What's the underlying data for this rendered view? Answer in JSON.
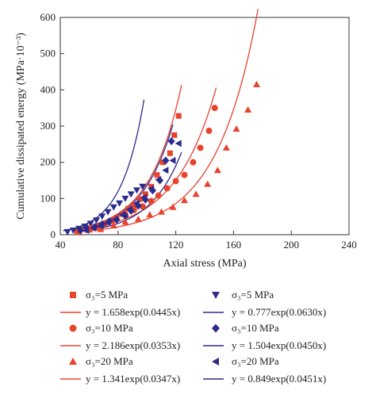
{
  "colors": {
    "red": "#e8432e",
    "blue": "#2c2c8c",
    "axis": "#333333"
  },
  "chart_data": {
    "type": "scatter",
    "xlabel": "Axial stress (MPa)",
    "ylabel": "Cumulative dissipated energy (MPa·10⁻³)",
    "xlim": [
      40,
      240
    ],
    "ylim": [
      0,
      600
    ],
    "xticks": [
      "40",
      "80",
      "120",
      "160",
      "200",
      "240"
    ],
    "yticks": [
      "0",
      "100",
      "200",
      "300",
      "400",
      "500",
      "600"
    ],
    "grid": false,
    "legend_position": "below plot",
    "series": [
      {
        "name": "σ₃=5 MPa",
        "color": "#e8432e",
        "marker": "square",
        "x": [
          53,
          59,
          63,
          67,
          71,
          75,
          79,
          83,
          87,
          91,
          95,
          99,
          103,
          107,
          111,
          116,
          119,
          122
        ],
        "y": [
          8,
          13,
          18,
          22,
          31,
          37,
          47,
          57,
          72,
          82,
          98,
          112,
          133,
          165,
          200,
          225,
          275,
          328
        ]
      },
      {
        "name": "σ₃=5 MPa",
        "color": "#2c2c8c",
        "marker": "triangle-down",
        "x": [
          45,
          49,
          53,
          57,
          61,
          65,
          69,
          73,
          77,
          81,
          85,
          89,
          93,
          97
        ],
        "y": [
          8,
          12,
          17,
          23,
          31,
          40,
          51,
          63,
          76,
          87,
          100,
          112,
          123,
          133
        ]
      },
      {
        "name": "σ₃=10 MPa",
        "color": "#e8432e",
        "marker": "circle",
        "x": [
          52,
          61,
          70,
          78,
          85,
          91,
          97,
          103,
          108,
          114,
          120,
          126,
          132,
          137,
          143,
          147
        ],
        "y": [
          7,
          18,
          30,
          43,
          56,
          68,
          78,
          93,
          108,
          128,
          148,
          165,
          200,
          240,
          287,
          350
        ]
      },
      {
        "name": "σ₃=10 MPa",
        "color": "#2c2c8c",
        "marker": "diamond",
        "x": [
          54,
          59,
          64,
          69,
          74,
          79,
          85,
          89,
          94,
          99,
          104,
          109,
          113,
          117
        ],
        "y": [
          12,
          16,
          22,
          29,
          37,
          42,
          52,
          66,
          80,
          97,
          122,
          150,
          205,
          258
        ]
      },
      {
        "name": "σ₃=20 MPa",
        "color": "#e8432e",
        "marker": "triangle-up",
        "x": [
          60,
          68,
          77,
          85,
          94,
          102,
          110,
          118,
          126,
          134,
          142,
          149,
          155,
          162,
          170,
          176
        ],
        "y": [
          14,
          15,
          25,
          35,
          43,
          55,
          63,
          76,
          95,
          112,
          140,
          178,
          240,
          292,
          345,
          415
        ]
      },
      {
        "name": "σ₃=20 MPa",
        "color": "#2c2c8c",
        "marker": "triangle-left",
        "x": [
          58,
          63,
          68,
          73,
          78,
          83,
          88,
          93,
          98,
          103,
          108,
          113,
          118,
          122
        ],
        "y": [
          12,
          18,
          24,
          33,
          42,
          55,
          70,
          87,
          103,
          127,
          152,
          178,
          205,
          252
        ]
      }
    ],
    "fits": [
      {
        "label": "y = 1.658exp(0.0445x)",
        "color": "#e8432e",
        "a": 1.658,
        "b": 0.0445,
        "x_range": [
          48,
          124
        ]
      },
      {
        "label": "y = 0.777exp(0.0630x)",
        "color": "#2c2c8c",
        "a": 0.777,
        "b": 0.063,
        "x_range": [
          42,
          98
        ]
      },
      {
        "label": "y = 2.186exp(0.0353x)",
        "color": "#e8432e",
        "a": 2.186,
        "b": 0.0353,
        "x_range": [
          48,
          148
        ]
      },
      {
        "label": "y = 1.504exp(0.0450x)",
        "color": "#2c2c8c",
        "a": 1.504,
        "b": 0.045,
        "x_range": [
          48,
          118
        ]
      },
      {
        "label": "y = 1.341exp(0.0347x)",
        "color": "#e8432e",
        "a": 1.341,
        "b": 0.0347,
        "x_range": [
          55,
          177
        ]
      },
      {
        "label": "y = 0.849exp(0.0451x)",
        "color": "#2c2c8c",
        "a": 0.849,
        "b": 0.0451,
        "x_range": [
          55,
          124
        ]
      }
    ]
  }
}
